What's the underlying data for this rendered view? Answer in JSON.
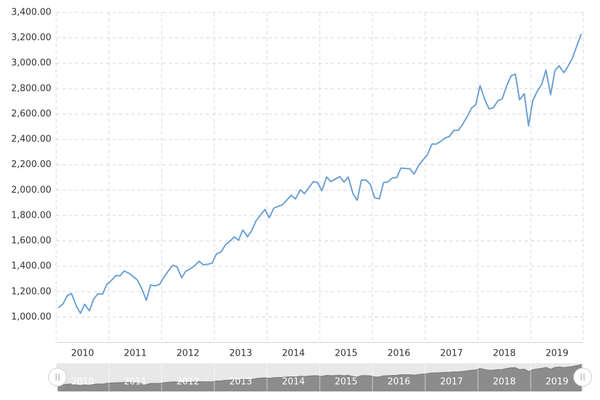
{
  "chart_data": {
    "type": "line",
    "x": [
      2010.04,
      2010.13,
      2010.21,
      2010.29,
      2010.38,
      2010.46,
      2010.54,
      2010.63,
      2010.71,
      2010.79,
      2010.88,
      2010.96,
      2011.04,
      2011.13,
      2011.21,
      2011.29,
      2011.38,
      2011.46,
      2011.54,
      2011.63,
      2011.71,
      2011.79,
      2011.88,
      2011.96,
      2012.04,
      2012.13,
      2012.21,
      2012.29,
      2012.38,
      2012.46,
      2012.54,
      2012.63,
      2012.71,
      2012.79,
      2012.88,
      2012.96,
      2013.04,
      2013.13,
      2013.21,
      2013.29,
      2013.38,
      2013.46,
      2013.54,
      2013.63,
      2013.71,
      2013.79,
      2013.88,
      2013.96,
      2014.04,
      2014.13,
      2014.21,
      2014.29,
      2014.38,
      2014.46,
      2014.54,
      2014.63,
      2014.71,
      2014.79,
      2014.88,
      2014.96,
      2015.04,
      2015.13,
      2015.21,
      2015.29,
      2015.38,
      2015.46,
      2015.54,
      2015.63,
      2015.71,
      2015.79,
      2015.88,
      2015.96,
      2016.04,
      2016.13,
      2016.21,
      2016.29,
      2016.38,
      2016.46,
      2016.54,
      2016.63,
      2016.71,
      2016.79,
      2016.88,
      2016.96,
      2017.04,
      2017.13,
      2017.21,
      2017.29,
      2017.38,
      2017.46,
      2017.54,
      2017.63,
      2017.71,
      2017.79,
      2017.88,
      2017.96,
      2018.04,
      2018.13,
      2018.21,
      2018.29,
      2018.38,
      2018.46,
      2018.54,
      2018.63,
      2018.71,
      2018.79,
      2018.88,
      2018.96,
      2019.04,
      2019.13,
      2019.21,
      2019.29,
      2019.38,
      2019.46,
      2019.54,
      2019.63,
      2019.71,
      2019.79,
      2019.88,
      2019.96
    ],
    "series": [
      {
        "color": "#6a9fd4",
        "values": [
          1073,
          1104,
          1169,
          1186,
          1089,
          1030,
          1101,
          1049,
          1141,
          1183,
          1180,
          1257,
          1286,
          1327,
          1325,
          1363,
          1345,
          1320,
          1292,
          1218,
          1131,
          1253,
          1246,
          1257,
          1312,
          1365,
          1408,
          1397,
          1310,
          1362,
          1379,
          1406,
          1440,
          1412,
          1416,
          1426,
          1498,
          1514,
          1569,
          1597,
          1631,
          1606,
          1686,
          1633,
          1682,
          1757,
          1806,
          1848,
          1783,
          1859,
          1872,
          1884,
          1924,
          1960,
          1931,
          2003,
          1972,
          2018,
          2068,
          2059,
          1995,
          2104,
          2068,
          2086,
          2107,
          2063,
          2104,
          1972,
          1920,
          2079,
          2080,
          2044,
          1940,
          1932,
          2060,
          2065,
          2097,
          2099,
          2174,
          2171,
          2168,
          2126,
          2199,
          2239,
          2279,
          2364,
          2363,
          2384,
          2412,
          2423,
          2470,
          2472,
          2519,
          2575,
          2648,
          2674,
          2824,
          2714,
          2641,
          2648,
          2705,
          2718,
          2816,
          2902,
          2914,
          2712,
          2760,
          2507,
          2704,
          2784,
          2834,
          2946,
          2752,
          2942,
          2980,
          2926,
          2977,
          3038,
          3141,
          3231
        ]
      }
    ],
    "xlim": [
      2010,
      2020
    ],
    "xticks": [
      {
        "value": 2010.5,
        "label": "2010"
      },
      {
        "value": 2011.5,
        "label": "2011"
      },
      {
        "value": 2012.5,
        "label": "2012"
      },
      {
        "value": 2013.5,
        "label": "2013"
      },
      {
        "value": 2014.5,
        "label": "2014"
      },
      {
        "value": 2015.5,
        "label": "2015"
      },
      {
        "value": 2016.5,
        "label": "2016"
      },
      {
        "value": 2017.5,
        "label": "2017"
      },
      {
        "value": 2018.5,
        "label": "2018"
      },
      {
        "value": 2019.5,
        "label": "2019"
      }
    ],
    "ylim": [
      800,
      3400
    ],
    "yticks": [
      {
        "value": 1000,
        "label": "1,000.00"
      },
      {
        "value": 1200,
        "label": "1,200.00"
      },
      {
        "value": 1400,
        "label": "1,400.00"
      },
      {
        "value": 1600,
        "label": "1,600.00"
      },
      {
        "value": 1800,
        "label": "1,800.00"
      },
      {
        "value": 2000,
        "label": "2,000.00"
      },
      {
        "value": 2200,
        "label": "2,200.00"
      },
      {
        "value": 2400,
        "label": "2,400.00"
      },
      {
        "value": 2600,
        "label": "2,600.00"
      },
      {
        "value": 2800,
        "label": "2,800.00"
      },
      {
        "value": 3000,
        "label": "3,000.00"
      },
      {
        "value": 3200,
        "label": "3,200.00"
      },
      {
        "value": 3400,
        "label": "3,400.00"
      }
    ],
    "grid": true,
    "navigator": true
  }
}
